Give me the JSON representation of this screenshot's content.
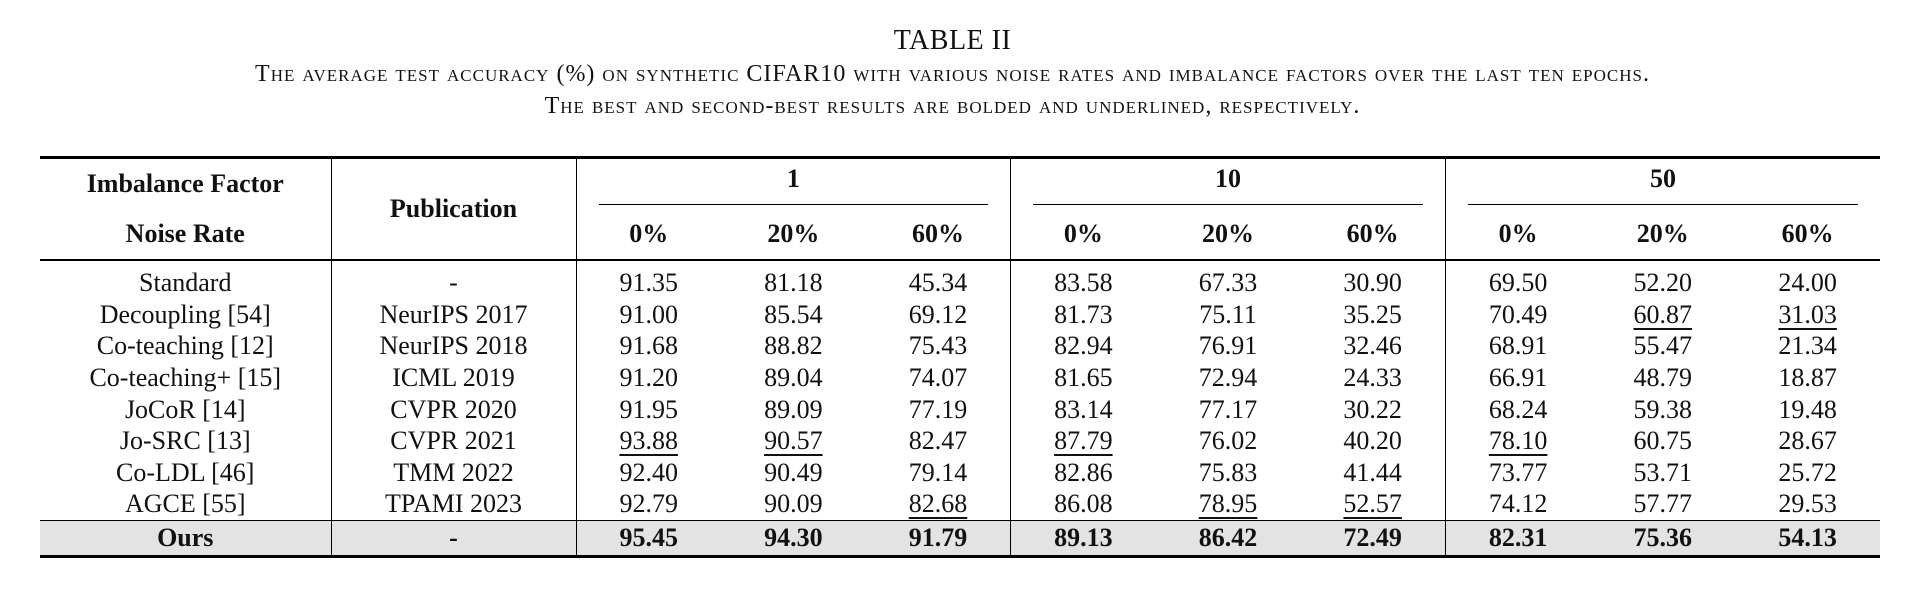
{
  "caption": {
    "table_label": "TABLE II",
    "line1": "The average test accuracy (%) on synthetic CIFAR10 with various noise rates and imbalance factors over the last ten epochs.",
    "line2": "The best and second-best results are bolded and underlined, respectively."
  },
  "header": {
    "imbalance_factor_label": "Imbalance Factor",
    "noise_rate_label": "Noise Rate",
    "publication_label": "Publication",
    "groups": [
      "1",
      "10",
      "50"
    ],
    "noise_rates": [
      "0%",
      "20%",
      "60%",
      "0%",
      "20%",
      "60%",
      "0%",
      "20%",
      "60%"
    ]
  },
  "rows": [
    {
      "method": "Standard",
      "publication": "-",
      "values": [
        "91.35",
        "81.18",
        "45.34",
        "83.58",
        "67.33",
        "30.90",
        "69.50",
        "52.20",
        "24.00"
      ]
    },
    {
      "method": "Decoupling [54]",
      "publication": "NeurIPS 2017",
      "values": [
        "91.00",
        "85.54",
        "69.12",
        "81.73",
        "75.11",
        "35.25",
        "70.49",
        "60.87",
        "31.03"
      ]
    },
    {
      "method": "Co-teaching [12]",
      "publication": "NeurIPS 2018",
      "values": [
        "91.68",
        "88.82",
        "75.43",
        "82.94",
        "76.91",
        "32.46",
        "68.91",
        "55.47",
        "21.34"
      ]
    },
    {
      "method": "Co-teaching+ [15]",
      "publication": "ICML 2019",
      "values": [
        "91.20",
        "89.04",
        "74.07",
        "81.65",
        "72.94",
        "24.33",
        "66.91",
        "48.79",
        "18.87"
      ]
    },
    {
      "method": "JoCoR [14]",
      "publication": "CVPR 2020",
      "values": [
        "91.95",
        "89.09",
        "77.19",
        "83.14",
        "77.17",
        "30.22",
        "68.24",
        "59.38",
        "19.48"
      ]
    },
    {
      "method": "Jo-SRC [13]",
      "publication": "CVPR 2021",
      "values": [
        "93.88",
        "90.57",
        "82.47",
        "87.79",
        "76.02",
        "40.20",
        "78.10",
        "60.75",
        "28.67"
      ]
    },
    {
      "method": "Co-LDL [46]",
      "publication": "TMM 2022",
      "values": [
        "92.40",
        "90.49",
        "79.14",
        "82.86",
        "75.83",
        "41.44",
        "73.77",
        "53.71",
        "25.72"
      ]
    },
    {
      "method": "AGCE [55]",
      "publication": "TPAMI 2023",
      "values": [
        "92.79",
        "90.09",
        "82.68",
        "86.08",
        "78.95",
        "52.57",
        "74.12",
        "57.77",
        "29.53"
      ]
    }
  ],
  "ours": {
    "method": "Ours",
    "publication": "-",
    "values": [
      "95.45",
      "94.30",
      "91.79",
      "89.13",
      "86.42",
      "72.49",
      "82.31",
      "75.36",
      "54.13"
    ]
  },
  "underlined": {
    "1": [
      7,
      8
    ],
    "5": [
      0,
      1,
      3,
      6
    ],
    "7": [
      2,
      4,
      5
    ]
  },
  "style": {
    "ours_row_background": "#e3e3e3",
    "rule_color": "#000000"
  }
}
